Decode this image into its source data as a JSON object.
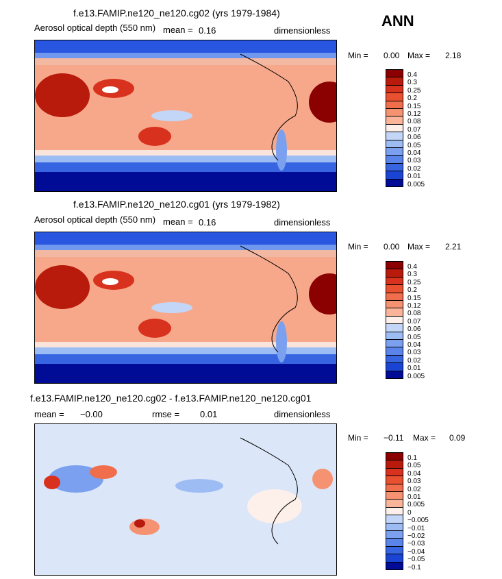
{
  "season_label": "ANN",
  "panels": [
    {
      "title": "f.e13.FAMIP.ne120_ne120.cg02 (yrs 1979-1984)",
      "left_text": "Aerosol optical depth (550 nm)",
      "mean_label": "mean =",
      "mean_value": "0.16",
      "units": "dimensionless",
      "min_label": "Min =",
      "min_value": "0.00",
      "max_label": "Max =",
      "max_value": "2.18",
      "colorbar_labels": [
        "0.4",
        "0.3",
        "0.25",
        "0.2",
        "0.15",
        "0.12",
        "0.08",
        "0.07",
        "0.06",
        "0.05",
        "0.04",
        "0.03",
        "0.02",
        "0.01",
        "0.005"
      ]
    },
    {
      "title": "f.e13.FAMIP.ne120_ne120.cg01 (yrs 1979-1982)",
      "left_text": "Aerosol optical depth (550 nm)",
      "mean_label": "mean =",
      "mean_value": "0.16",
      "units": "dimensionless",
      "min_label": "Min =",
      "min_value": "0.00",
      "max_label": "Max =",
      "max_value": "2.21",
      "colorbar_labels": [
        "0.4",
        "0.3",
        "0.25",
        "0.2",
        "0.15",
        "0.12",
        "0.08",
        "0.07",
        "0.06",
        "0.05",
        "0.04",
        "0.03",
        "0.02",
        "0.01",
        "0.005"
      ]
    },
    {
      "title": "f.e13.FAMIP.ne120_ne120.cg02 - f.e13.FAMIP.ne120_ne120.cg01",
      "mean_label": "mean =",
      "mean_value": "−0.00",
      "rmse_label": "rmse =",
      "rmse_value": "0.01",
      "units": "dimensionless",
      "min_label": "Min =",
      "min_value": "−0.11",
      "max_label": "Max =",
      "max_value": "0.09",
      "colorbar_labels": [
        "0.1",
        "0.05",
        "0.04",
        "0.03",
        "0.02",
        "0.01",
        "0.005",
        "0",
        "−0.005",
        "−0.01",
        "−0.02",
        "−0.03",
        "−0.04",
        "−0.05",
        "−0.1"
      ]
    }
  ],
  "colorbar_colors": [
    "#8b0000",
    "#b81a0c",
    "#d8321e",
    "#e9502f",
    "#f06e4c",
    "#f59272",
    "#f9b499",
    "#fdf0ea",
    "#c3d6f7",
    "#9dbcf4",
    "#7aa0ef",
    "#5a84ea",
    "#3765e1",
    "#1a44d4",
    "#000c96"
  ],
  "chart_data": [
    {
      "type": "heatmap",
      "title": "f.e13.FAMIP.ne120_ne120.cg02 (yrs 1979-1984)",
      "variable": "Aerosol optical depth (550 nm)",
      "season": "ANN",
      "units": "dimensionless",
      "mean": 0.16,
      "min": 0.0,
      "max": 2.18,
      "contour_levels": [
        0.005,
        0.01,
        0.02,
        0.03,
        0.04,
        0.05,
        0.06,
        0.07,
        0.08,
        0.12,
        0.15,
        0.2,
        0.25,
        0.3,
        0.4
      ]
    },
    {
      "type": "heatmap",
      "title": "f.e13.FAMIP.ne120_ne120.cg01 (yrs 1979-1982)",
      "variable": "Aerosol optical depth (550 nm)",
      "season": "ANN",
      "units": "dimensionless",
      "mean": 0.16,
      "min": 0.0,
      "max": 2.21,
      "contour_levels": [
        0.005,
        0.01,
        0.02,
        0.03,
        0.04,
        0.05,
        0.06,
        0.07,
        0.08,
        0.12,
        0.15,
        0.2,
        0.25,
        0.3,
        0.4
      ]
    },
    {
      "type": "heatmap",
      "title": "f.e13.FAMIP.ne120_ne120.cg02 - f.e13.FAMIP.ne120_ne120.cg01",
      "units": "dimensionless",
      "mean": -0.0,
      "rmse": 0.01,
      "min": -0.11,
      "max": 0.09,
      "contour_levels": [
        -0.1,
        -0.05,
        -0.04,
        -0.03,
        -0.02,
        -0.01,
        -0.005,
        0,
        0.005,
        0.01,
        0.02,
        0.03,
        0.04,
        0.05,
        0.1
      ]
    }
  ]
}
